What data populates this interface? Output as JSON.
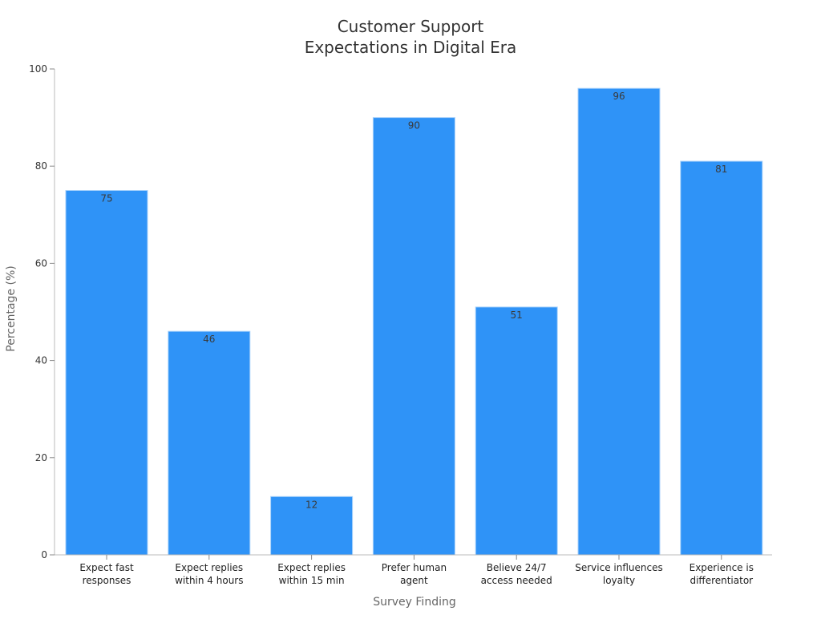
{
  "chart_data": {
    "type": "bar",
    "title_lines": [
      "Customer Support",
      "Expectations in Digital Era"
    ],
    "xlabel": "Survey Finding",
    "ylabel": "Percentage (%)",
    "ylim": [
      0,
      100
    ],
    "yticks": [
      0,
      20,
      40,
      60,
      80,
      100
    ],
    "categories": [
      [
        "Expect fast",
        "responses"
      ],
      [
        "Expect replies",
        "within 4 hours"
      ],
      [
        "Expect replies",
        "within 15 min"
      ],
      [
        "Prefer human",
        "agent"
      ],
      [
        "Believe 24/7",
        "access needed"
      ],
      [
        "Service influences",
        "loyalty"
      ],
      [
        "Experience is",
        "differentiator"
      ]
    ],
    "values": [
      75,
      46,
      12,
      90,
      51,
      96,
      81
    ],
    "data_labels": [
      "75",
      "46",
      "12",
      "90",
      "51",
      "96",
      "81"
    ],
    "grid": false,
    "legend": "none",
    "colors": {
      "bar": "#2f93f7",
      "bar_edge": "#a9d2fb",
      "axis": "#bbbbbb"
    }
  }
}
